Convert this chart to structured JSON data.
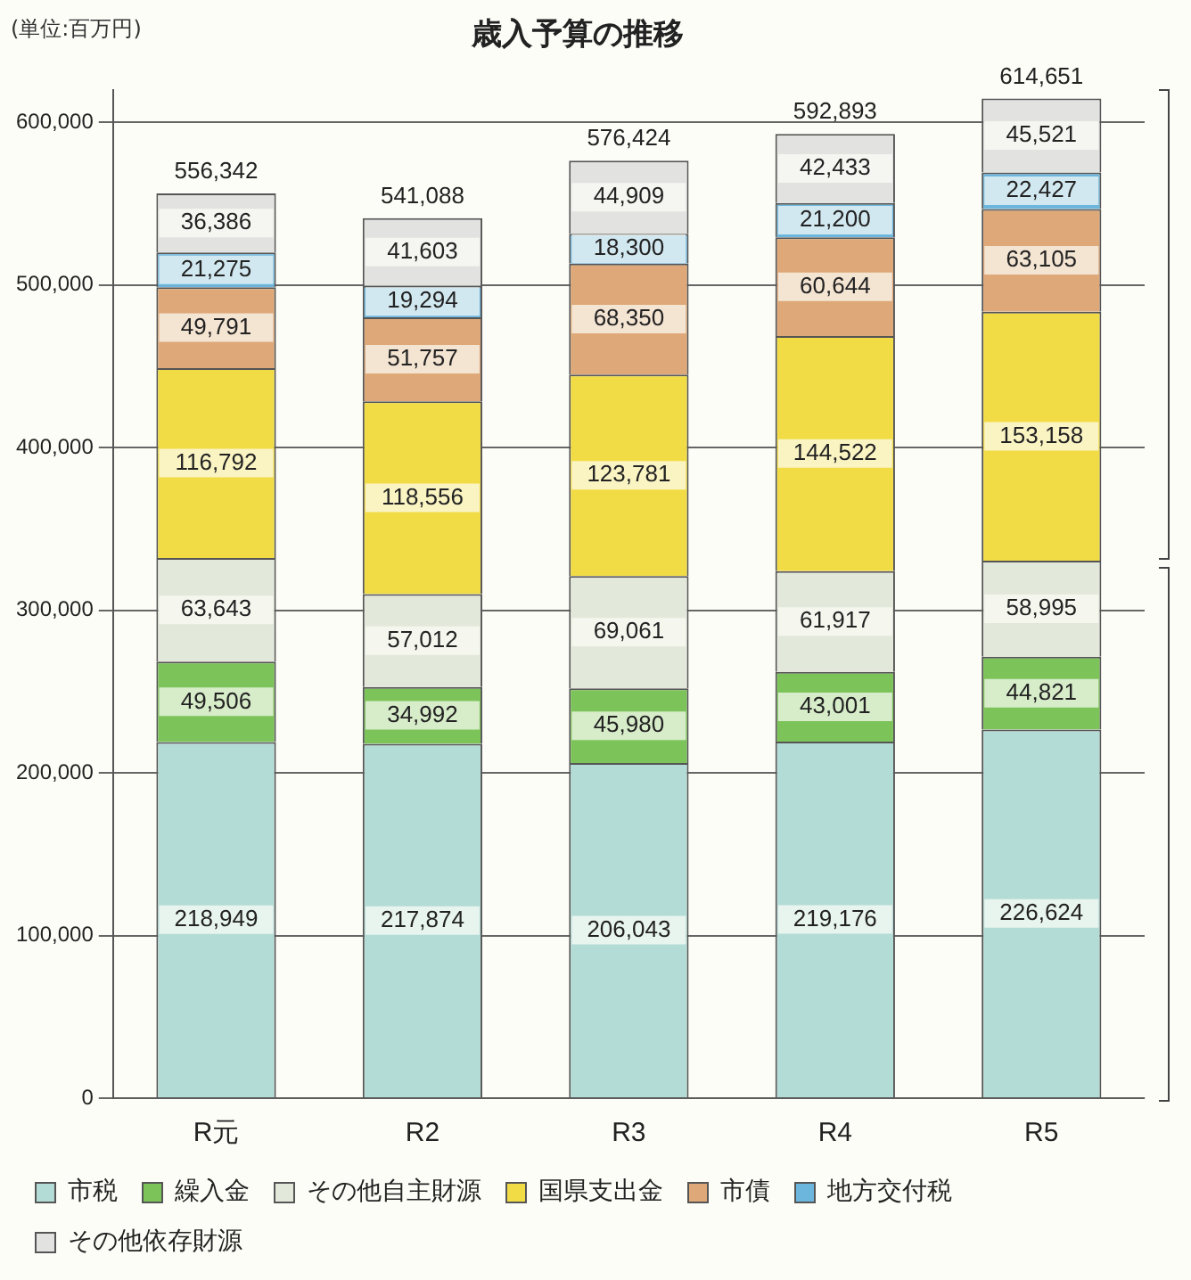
{
  "chart_data": {
    "type": "bar",
    "title": "歳入予算の推移",
    "annotations": [
      "(単位:百万円)"
    ],
    "categories": [
      "R元",
      "R2",
      "R3",
      "R4",
      "R5"
    ],
    "stacked": true,
    "series": [
      {
        "name": "市税",
        "color": "#b4dcd6",
        "values": [
          218949,
          217874,
          206043,
          219176,
          226624
        ],
        "value_labels": [
          "218,949",
          "217,874",
          "206,043",
          "219,176",
          "226,624"
        ]
      },
      {
        "name": "繰入金",
        "color": "#7cc45a",
        "values": [
          49506,
          34992,
          45980,
          43001,
          44821
        ],
        "value_labels": [
          "49,506",
          "34,992",
          "45,980",
          "43,001",
          "44,821"
        ]
      },
      {
        "name": "その他自主財源",
        "color": "#e2e8da",
        "values": [
          63643,
          57012,
          69061,
          61917,
          58995
        ],
        "value_labels": [
          "63,643",
          "57,012",
          "69,061",
          "61,917",
          "58,995"
        ]
      },
      {
        "name": "国県支出金",
        "color": "#f2dc46",
        "values": [
          116792,
          118556,
          123781,
          144522,
          153158
        ],
        "value_labels": [
          "116,792",
          "118,556",
          "123,781",
          "144,522",
          "153,158"
        ]
      },
      {
        "name": "市債",
        "color": "#dea878",
        "values": [
          49791,
          51757,
          68350,
          60644,
          63105
        ],
        "value_labels": [
          "49,791",
          "51,757",
          "68,350",
          "60,644",
          "63,105"
        ]
      },
      {
        "name": "地方交付税",
        "color": "#6cb6de",
        "values": [
          21275,
          19294,
          18300,
          21200,
          22427
        ],
        "value_labels": [
          "21,275",
          "19,294",
          "18,300",
          "21,200",
          "22,427"
        ]
      },
      {
        "name": "その他依存財源",
        "color": "#e2e2e0",
        "values": [
          36386,
          41603,
          44909,
          42433,
          45521
        ],
        "value_labels": [
          "36,386",
          "41,603",
          "44,909",
          "42,433",
          "45,521"
        ]
      }
    ],
    "totals": [
      "556,342",
      "541,088",
      "576,424",
      "592,893",
      "614,651"
    ],
    "ylim": [
      0,
      620000
    ],
    "yticks": [
      {
        "value": 0,
        "label": "0"
      },
      {
        "value": 100000,
        "label": "100,000"
      },
      {
        "value": 200000,
        "label": "200,000"
      },
      {
        "value": 300000,
        "label": "300,000"
      },
      {
        "value": 400000,
        "label": "400,000"
      },
      {
        "value": 500000,
        "label": "500,000"
      },
      {
        "value": 600000,
        "label": "600,000"
      }
    ],
    "grid": "y",
    "legend": "bottom"
  }
}
